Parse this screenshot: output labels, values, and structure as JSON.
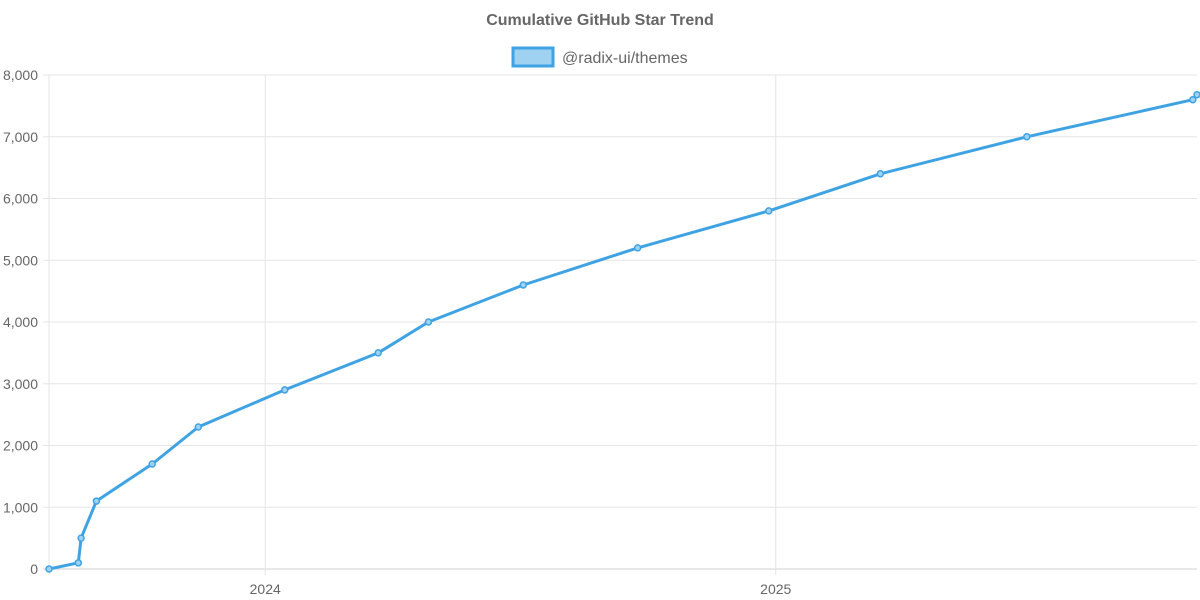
{
  "chart_data": {
    "type": "line",
    "title": "Cumulative GitHub Star Trend",
    "xlabel": "",
    "ylabel": "",
    "x_ticks": [
      {
        "label": "2024",
        "date": "2024-01-01"
      },
      {
        "label": "2025",
        "date": "2025-01-01"
      }
    ],
    "xlim": [
      "2023-07-30",
      "2025-10-30"
    ],
    "ylim": [
      0,
      8000
    ],
    "y_ticks": [
      0,
      1000,
      2000,
      3000,
      4000,
      5000,
      6000,
      7000,
      8000
    ],
    "y_tick_labels": [
      "0",
      "1,000",
      "2,000",
      "3,000",
      "4,000",
      "5,000",
      "6,000",
      "7,000",
      "8,000"
    ],
    "grid": true,
    "legend_position": "top",
    "series": [
      {
        "name": "@radix-ui/themes",
        "color": "#3fa3e3",
        "fill_color": "#9fd1f1",
        "points": [
          {
            "x": "2023-07-30",
            "y": 0
          },
          {
            "x": "2023-08-20",
            "y": 100
          },
          {
            "x": "2023-08-22",
            "y": 500
          },
          {
            "x": "2023-09-02",
            "y": 1100
          },
          {
            "x": "2023-10-12",
            "y": 1700
          },
          {
            "x": "2023-11-14",
            "y": 2300
          },
          {
            "x": "2024-01-15",
            "y": 2900
          },
          {
            "x": "2024-03-22",
            "y": 3500
          },
          {
            "x": "2024-04-27",
            "y": 4000
          },
          {
            "x": "2024-07-04",
            "y": 4600
          },
          {
            "x": "2024-09-24",
            "y": 5200
          },
          {
            "x": "2024-12-27",
            "y": 5800
          },
          {
            "x": "2025-03-17",
            "y": 6400
          },
          {
            "x": "2025-06-30",
            "y": 7000
          },
          {
            "x": "2025-10-27",
            "y": 7600
          },
          {
            "x": "2025-10-30",
            "y": 7680
          }
        ]
      }
    ]
  }
}
